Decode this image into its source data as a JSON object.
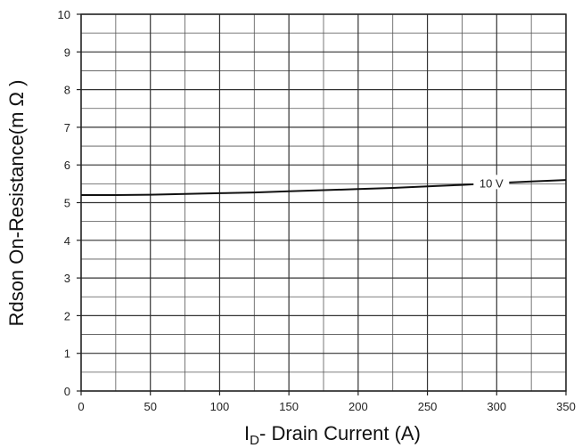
{
  "chart_data": {
    "type": "line",
    "title": "",
    "xlabel": {
      "main": "I",
      "sub": "D",
      "rest": "- Drain Current (A)"
    },
    "ylabel": "Rdson On-Resistance(m Ω )",
    "xlim": [
      0,
      350
    ],
    "ylim": [
      0,
      10
    ],
    "x_ticks": [
      0,
      50,
      100,
      150,
      200,
      250,
      300,
      350
    ],
    "y_ticks": [
      0,
      1,
      2,
      3,
      4,
      5,
      6,
      7,
      8,
      9,
      10
    ],
    "grid": true,
    "series": [
      {
        "name": "10 V",
        "x": [
          0,
          25,
          50,
          75,
          100,
          125,
          150,
          175,
          200,
          225,
          250,
          275,
          300,
          325,
          350
        ],
        "y": [
          5.2,
          5.2,
          5.21,
          5.23,
          5.25,
          5.27,
          5.3,
          5.33,
          5.36,
          5.39,
          5.43,
          5.47,
          5.52,
          5.56,
          5.6
        ]
      }
    ]
  }
}
